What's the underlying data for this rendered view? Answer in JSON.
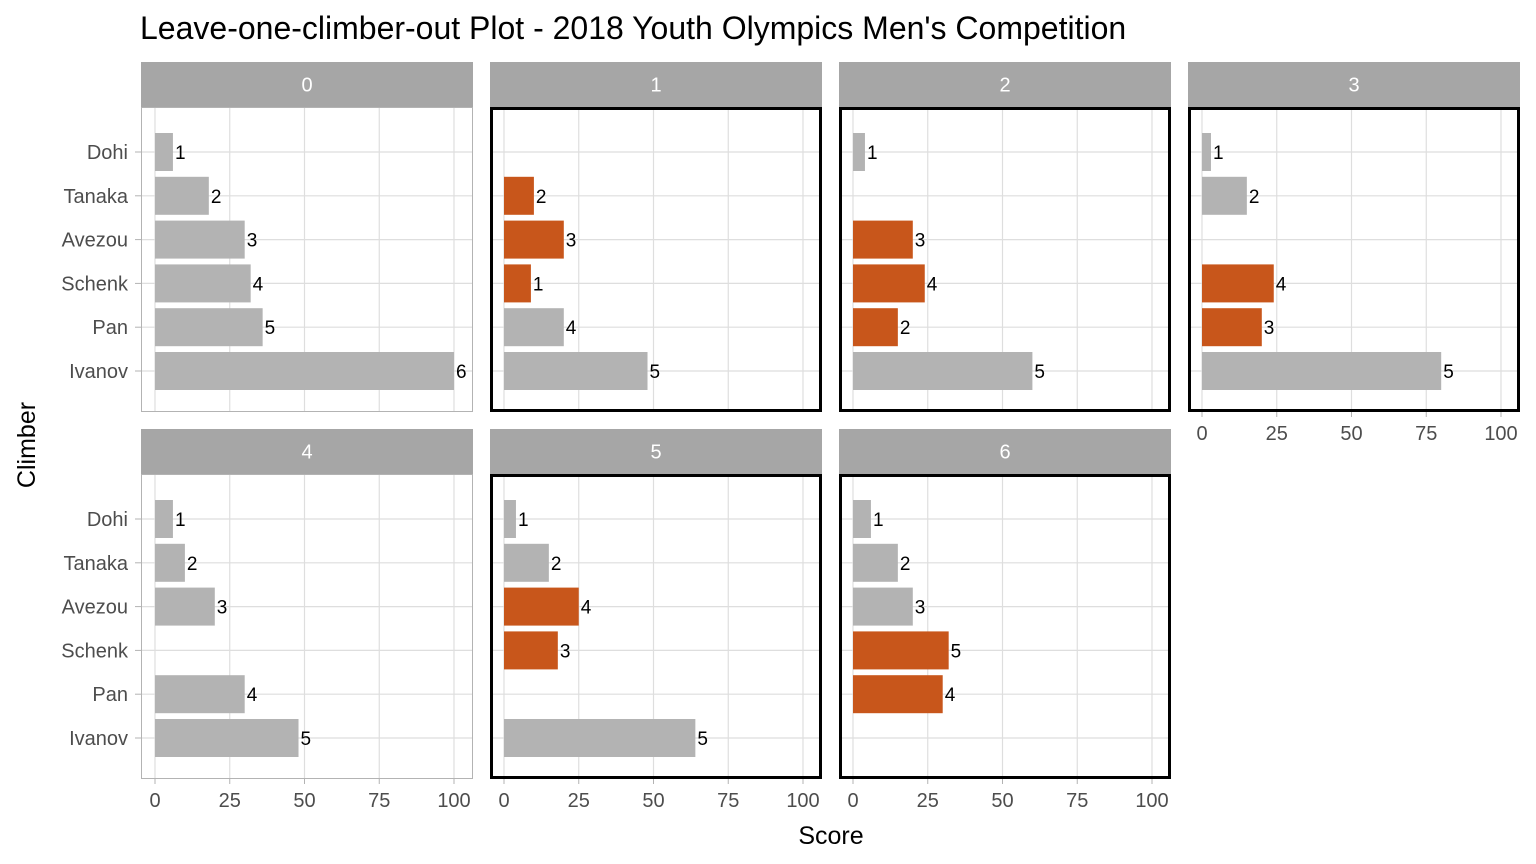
{
  "chart_data": {
    "type": "bar",
    "orientation": "horizontal",
    "title": "Leave-one-climber-out Plot - 2018 Youth Olympics Men's Competition",
    "xlabel": "Score",
    "ylabel": "Climber",
    "xlim": [
      0,
      100
    ],
    "x_ticks": [
      0,
      25,
      50,
      75,
      100
    ],
    "categories": [
      "Dohi",
      "Tanaka",
      "Avezou",
      "Schenk",
      "Pan",
      "Ivanov"
    ],
    "grid": true,
    "colors": {
      "default": "#b3b3b3",
      "highlight": "#c8561b",
      "strip": "#a6a6a6",
      "highlight_border": "#000000"
    },
    "panels": [
      {
        "label": "0",
        "highlighted_border": false,
        "bars": [
          {
            "climber": "Dohi",
            "value": 6,
            "rank": "1",
            "highlight": false
          },
          {
            "climber": "Tanaka",
            "value": 18,
            "rank": "2",
            "highlight": false
          },
          {
            "climber": "Avezou",
            "value": 30,
            "rank": "3",
            "highlight": false
          },
          {
            "climber": "Schenk",
            "value": 32,
            "rank": "4",
            "highlight": false
          },
          {
            "climber": "Pan",
            "value": 36,
            "rank": "5",
            "highlight": false
          },
          {
            "climber": "Ivanov",
            "value": 100,
            "rank": "6",
            "highlight": false
          }
        ]
      },
      {
        "label": "1",
        "highlighted_border": true,
        "bars": [
          {
            "climber": "Tanaka",
            "value": 10,
            "rank": "2",
            "highlight": true
          },
          {
            "climber": "Avezou",
            "value": 20,
            "rank": "3",
            "highlight": true
          },
          {
            "climber": "Schenk",
            "value": 9,
            "rank": "1",
            "highlight": true
          },
          {
            "climber": "Pan",
            "value": 20,
            "rank": "4",
            "highlight": false
          },
          {
            "climber": "Ivanov",
            "value": 48,
            "rank": "5",
            "highlight": false
          }
        ]
      },
      {
        "label": "2",
        "highlighted_border": true,
        "bars": [
          {
            "climber": "Dohi",
            "value": 4,
            "rank": "1",
            "highlight": false
          },
          {
            "climber": "Avezou",
            "value": 20,
            "rank": "3",
            "highlight": true
          },
          {
            "climber": "Schenk",
            "value": 24,
            "rank": "4",
            "highlight": true
          },
          {
            "climber": "Pan",
            "value": 15,
            "rank": "2",
            "highlight": true
          },
          {
            "climber": "Ivanov",
            "value": 60,
            "rank": "5",
            "highlight": false
          }
        ]
      },
      {
        "label": "3",
        "highlighted_border": true,
        "bars": [
          {
            "climber": "Dohi",
            "value": 3,
            "rank": "1",
            "highlight": false
          },
          {
            "climber": "Tanaka",
            "value": 15,
            "rank": "2",
            "highlight": false
          },
          {
            "climber": "Schenk",
            "value": 24,
            "rank": "4",
            "highlight": true
          },
          {
            "climber": "Pan",
            "value": 20,
            "rank": "3",
            "highlight": true
          },
          {
            "climber": "Ivanov",
            "value": 80,
            "rank": "5",
            "highlight": false
          }
        ]
      },
      {
        "label": "4",
        "highlighted_border": false,
        "bars": [
          {
            "climber": "Dohi",
            "value": 6,
            "rank": "1",
            "highlight": false
          },
          {
            "climber": "Tanaka",
            "value": 10,
            "rank": "2",
            "highlight": false
          },
          {
            "climber": "Avezou",
            "value": 20,
            "rank": "3",
            "highlight": false
          },
          {
            "climber": "Pan",
            "value": 30,
            "rank": "4",
            "highlight": false
          },
          {
            "climber": "Ivanov",
            "value": 48,
            "rank": "5",
            "highlight": false
          }
        ]
      },
      {
        "label": "5",
        "highlighted_border": true,
        "bars": [
          {
            "climber": "Dohi",
            "value": 4,
            "rank": "1",
            "highlight": false
          },
          {
            "climber": "Tanaka",
            "value": 15,
            "rank": "2",
            "highlight": false
          },
          {
            "climber": "Avezou",
            "value": 25,
            "rank": "4",
            "highlight": true
          },
          {
            "climber": "Schenk",
            "value": 18,
            "rank": "3",
            "highlight": true
          },
          {
            "climber": "Ivanov",
            "value": 64,
            "rank": "5",
            "highlight": false
          }
        ]
      },
      {
        "label": "6",
        "highlighted_border": true,
        "bars": [
          {
            "climber": "Dohi",
            "value": 6,
            "rank": "1",
            "highlight": false
          },
          {
            "climber": "Tanaka",
            "value": 15,
            "rank": "2",
            "highlight": false
          },
          {
            "climber": "Avezou",
            "value": 20,
            "rank": "3",
            "highlight": false
          },
          {
            "climber": "Schenk",
            "value": 32,
            "rank": "5",
            "highlight": true
          },
          {
            "climber": "Pan",
            "value": 30,
            "rank": "4",
            "highlight": true
          }
        ]
      }
    ]
  }
}
